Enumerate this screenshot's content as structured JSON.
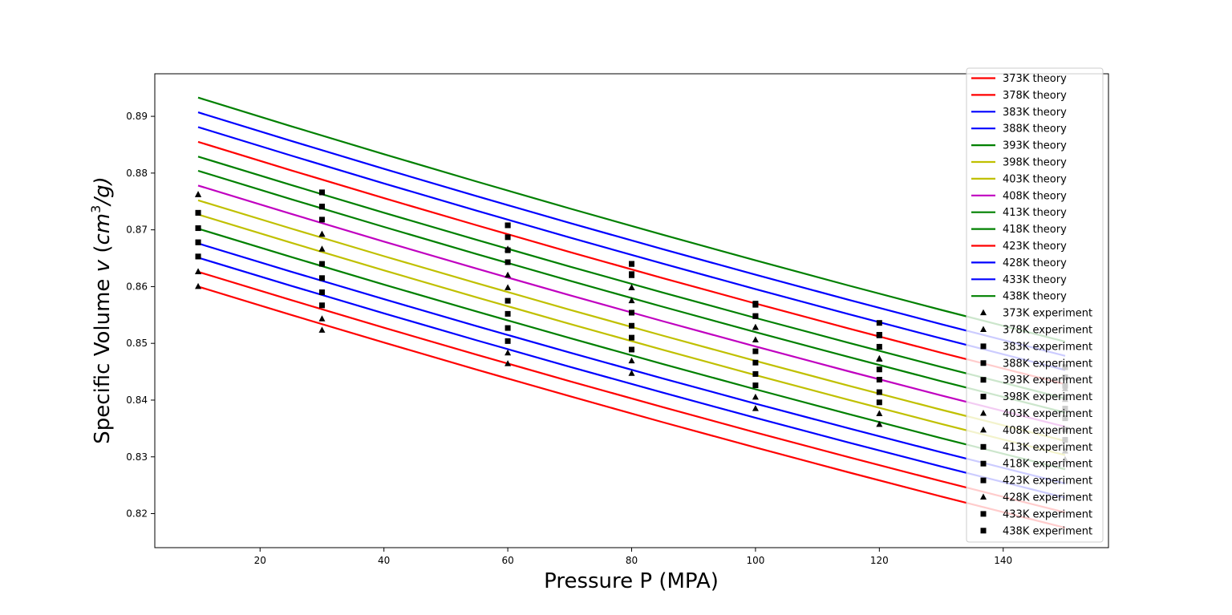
{
  "chart_data": {
    "type": "line",
    "xlabel": "Pressure P (MPA)",
    "ylabel": {
      "prefix": "Specific Volume ",
      "var": "v",
      "unit_open": " (",
      "unit_base": "cm",
      "unit_exp": "3",
      "unit_close": "/g)"
    },
    "xlim": [
      3,
      157
    ],
    "ylim": [
      0.814,
      0.8975
    ],
    "x_ticks": [
      20,
      40,
      60,
      80,
      100,
      120,
      140
    ],
    "y_ticks": [
      0.82,
      0.83,
      0.84,
      0.85,
      0.86,
      0.87,
      0.88,
      0.89
    ],
    "grid": false,
    "legend_position": "upper-right",
    "theory_x": [
      10,
      25,
      40,
      55,
      70,
      85,
      100,
      115,
      130,
      150
    ],
    "theory_series": [
      {
        "name": "373K theory",
        "color": "#ff0000",
        "y0": 0.86,
        "y150": 0.8175
      },
      {
        "name": "378K theory",
        "color": "#ff0000",
        "y0": 0.8626,
        "y150": 0.8202
      },
      {
        "name": "383K theory",
        "color": "#0000ff",
        "y0": 0.8651,
        "y150": 0.8228
      },
      {
        "name": "388K theory",
        "color": "#0000ff",
        "y0": 0.8676,
        "y150": 0.8253
      },
      {
        "name": "393K theory",
        "color": "#008000",
        "y0": 0.8702,
        "y150": 0.8278
      },
      {
        "name": "398K theory",
        "color": "#c0c000",
        "y0": 0.8727,
        "y150": 0.8303
      },
      {
        "name": "403K theory",
        "color": "#c0c000",
        "y0": 0.8752,
        "y150": 0.8328
      },
      {
        "name": "408K theory",
        "color": "#c000c0",
        "y0": 0.8778,
        "y150": 0.8353
      },
      {
        "name": "413K theory",
        "color": "#008000",
        "y0": 0.8804,
        "y150": 0.8378
      },
      {
        "name": "418K theory",
        "color": "#008000",
        "y0": 0.8829,
        "y150": 0.8403
      },
      {
        "name": "423K theory",
        "color": "#ff0000",
        "y0": 0.8855,
        "y150": 0.8428
      },
      {
        "name": "428K theory",
        "color": "#0000ff",
        "y0": 0.8881,
        "y150": 0.8453
      },
      {
        "name": "433K theory",
        "color": "#0000ff",
        "y0": 0.8907,
        "y150": 0.8478
      },
      {
        "name": "438K theory",
        "color": "#008000",
        "y0": 0.8933,
        "y150": 0.8503
      }
    ],
    "experiment_x": [
      10,
      30,
      60,
      80,
      100,
      120,
      150
    ],
    "experiment_series": [
      {
        "name": "373K experiment",
        "marker": "triangle",
        "y": [
          0.86,
          0.8523,
          0.8464,
          0.8447,
          0.8385,
          0.8357,
          0.8295
        ]
      },
      {
        "name": "378K experiment",
        "marker": "triangle",
        "y": [
          0.8626,
          0.8543,
          0.8483,
          0.8469,
          0.8405,
          0.8376,
          0.831
        ]
      },
      {
        "name": "383K experiment",
        "marker": "square",
        "y": [
          0.8653,
          0.8567,
          0.8504,
          0.8489,
          0.8426,
          0.8396,
          0.833
        ]
      },
      {
        "name": "388K experiment",
        "marker": "square",
        "y": [
          0.8678,
          0.859,
          0.8527,
          0.851,
          0.8446,
          0.8414,
          0.8348
        ]
      },
      {
        "name": "393K experiment",
        "marker": "square",
        "y": [
          0.8703,
          0.8615,
          0.8552,
          0.8531,
          0.8466,
          0.8436,
          0.8368
        ]
      },
      {
        "name": "398K experiment",
        "marker": "square",
        "y": [
          0.873,
          0.864,
          0.8575,
          0.8554,
          0.8486,
          0.8454,
          0.8385
        ]
      },
      {
        "name": "403K experiment",
        "marker": "triangle",
        "y": [
          0.8762,
          0.8666,
          0.8598,
          0.8575,
          0.8506,
          0.8472,
          0.8401
        ]
      },
      {
        "name": "408K experiment",
        "marker": "triangle",
        "y": [
          0.8762,
          0.8692,
          0.862,
          0.8598,
          0.8528,
          0.8493,
          0.842
        ]
      },
      {
        "name": "413K experiment",
        "marker": "square",
        "y": [
          0.8703,
          0.8718,
          0.8643,
          0.862,
          0.8548,
          0.8514,
          0.844
        ]
      },
      {
        "name": "418K experiment",
        "marker": "square",
        "y": [
          0.8678,
          0.8741,
          0.8664,
          0.8622,
          0.8568,
          0.8536,
          0.8458
        ]
      },
      {
        "name": "423K experiment",
        "marker": "square",
        "y": [
          0.8653,
          0.8766,
          0.8687,
          0.864,
          0.857,
          0.8515,
          0.8425
        ]
      },
      {
        "name": "428K experiment",
        "marker": "triangle",
        "y": [
          0.8626,
          0.8692,
          0.8666,
          0.8598,
          0.8528,
          0.8473,
          0.8405
        ]
      },
      {
        "name": "433K experiment",
        "marker": "square",
        "y": [
          0.8703,
          0.8741,
          0.8708,
          0.864,
          0.8548,
          0.8494,
          0.844
        ]
      },
      {
        "name": "438K experiment",
        "marker": "square",
        "y": [
          0.873,
          0.8766,
          0.8708,
          0.864,
          0.8568,
          0.8515,
          0.8458
        ]
      }
    ]
  }
}
